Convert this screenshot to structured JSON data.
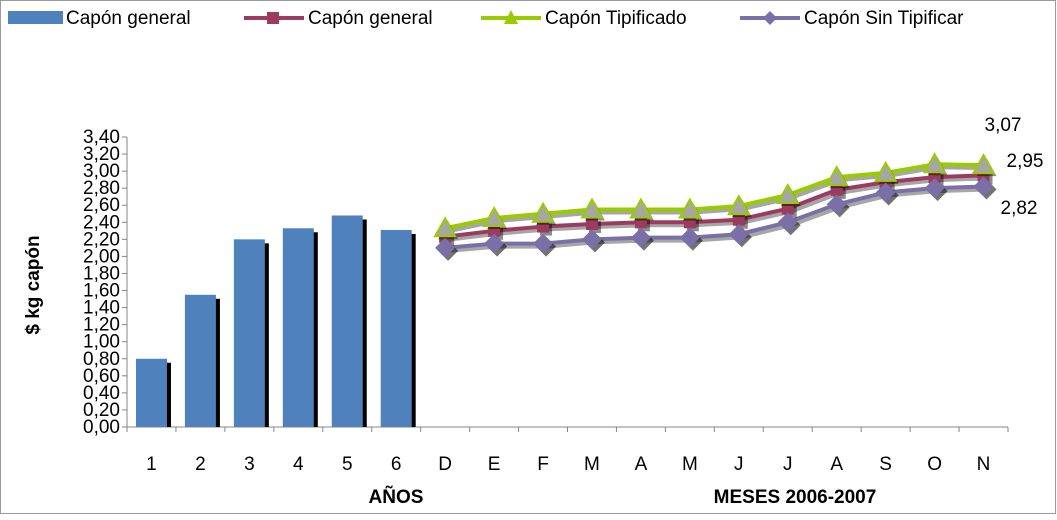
{
  "chart_data": {
    "type": "bar+line",
    "ylabel": "$ kg capón",
    "xlabel_bars": "AÑOS",
    "xlabel_lines": "MESES  2006-2007",
    "ylim": [
      0,
      3.4
    ],
    "yticks": [
      "0,00",
      "0,20",
      "0,40",
      "0,60",
      "0,80",
      "1,00",
      "1,20",
      "1,40",
      "1,60",
      "1,80",
      "2,00",
      "2,20",
      "2,40",
      "2,60",
      "2,80",
      "3,00",
      "3,20",
      "3,40"
    ],
    "categories": [
      "1",
      "2",
      "3",
      "4",
      "5",
      "6",
      "D",
      "E",
      "F",
      "M",
      "A",
      "M",
      "J",
      "J",
      "A",
      "S",
      "O",
      "N"
    ],
    "legend_position": "top",
    "bar_series": {
      "name": "Capón general",
      "color": "#4F81BD",
      "categories": [
        "1",
        "2",
        "3",
        "4",
        "5",
        "6"
      ],
      "values": [
        0.8,
        1.55,
        2.2,
        2.33,
        2.48,
        2.31
      ]
    },
    "line_series": [
      {
        "name": "Capón general",
        "color": "#9B3B5F",
        "marker": "square",
        "categories": [
          "D",
          "E",
          "F",
          "M",
          "A",
          "M",
          "J",
          "J",
          "A",
          "S",
          "O",
          "N"
        ],
        "values": [
          2.23,
          2.3,
          2.35,
          2.38,
          2.4,
          2.4,
          2.43,
          2.56,
          2.78,
          2.87,
          2.93,
          2.95
        ]
      },
      {
        "name": "Capón Tipificado",
        "color": "#99CC00",
        "marker": "triangle",
        "categories": [
          "D",
          "E",
          "F",
          "M",
          "A",
          "M",
          "J",
          "J",
          "A",
          "S",
          "O",
          "N"
        ],
        "values": [
          2.33,
          2.45,
          2.5,
          2.55,
          2.55,
          2.55,
          2.59,
          2.72,
          2.93,
          2.98,
          3.08,
          3.07
        ]
      },
      {
        "name": "Capón Sin Tipificar",
        "color": "#7B6FA8",
        "marker": "diamond",
        "categories": [
          "D",
          "E",
          "F",
          "M",
          "A",
          "M",
          "J",
          "J",
          "A",
          "S",
          "O",
          "N"
        ],
        "values": [
          2.1,
          2.15,
          2.15,
          2.2,
          2.22,
          2.22,
          2.26,
          2.4,
          2.61,
          2.75,
          2.8,
          2.82
        ]
      }
    ],
    "annotations": [
      "3,07",
      "2,95",
      "2,82"
    ]
  }
}
